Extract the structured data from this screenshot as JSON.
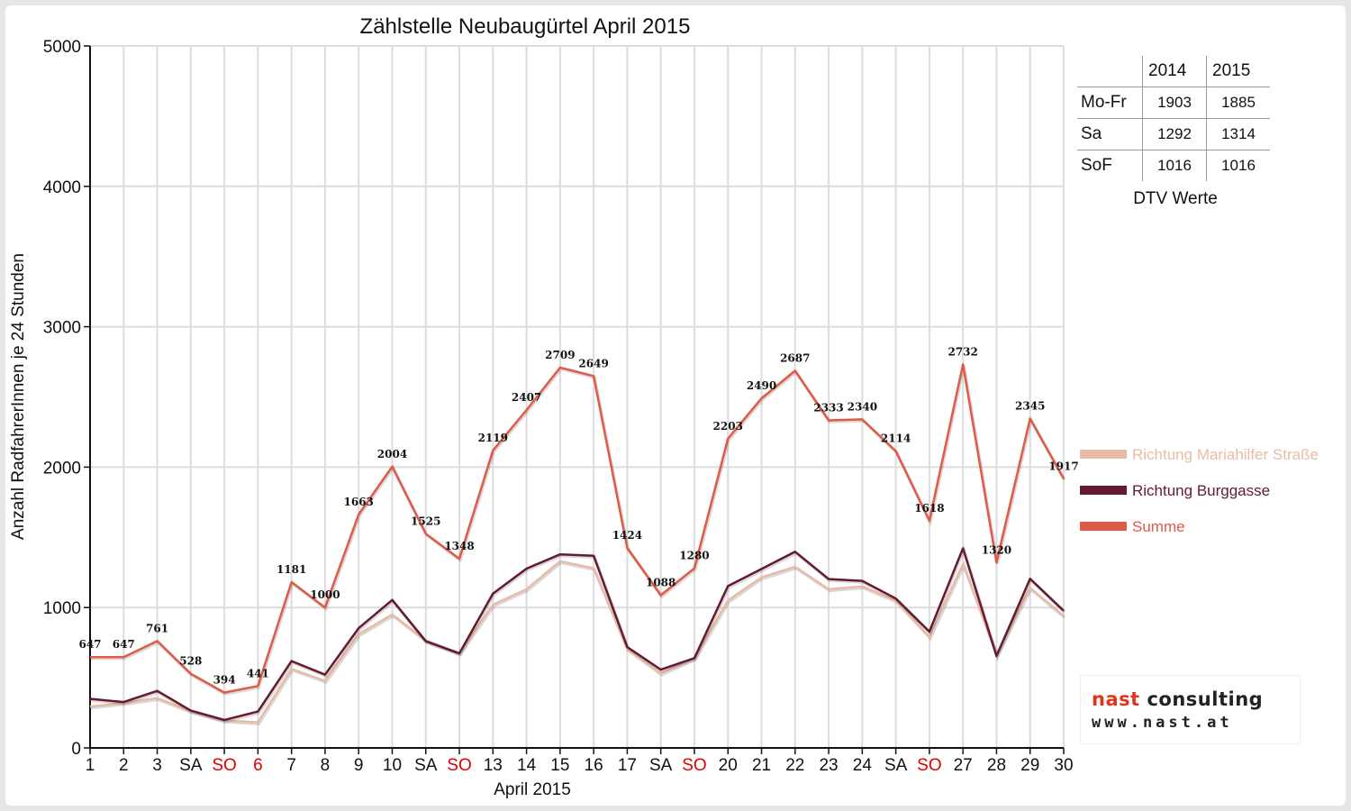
{
  "chart_data": {
    "type": "line",
    "title": "Zählstelle Neubaugürtel April 2015",
    "xlabel": "April 2015",
    "ylabel": "Anzahl RadfahrerInnen je 24 Stunden",
    "ylim": [
      0,
      5000
    ],
    "yticks": [
      0,
      1000,
      2000,
      3000,
      4000,
      5000
    ],
    "grid": true,
    "legend_position": "right",
    "categories": [
      "1",
      "2",
      "3",
      "SA",
      "SO",
      "6",
      "7",
      "8",
      "9",
      "10",
      "SA",
      "SO",
      "13",
      "14",
      "15",
      "16",
      "17",
      "SA",
      "SO",
      "20",
      "21",
      "22",
      "23",
      "24",
      "SA",
      "SO",
      "27",
      "28",
      "29",
      "30"
    ],
    "category_colors": [
      "#111",
      "#111",
      "#111",
      "#111",
      "#e00000",
      "#e00000",
      "#111",
      "#111",
      "#111",
      "#111",
      "#111",
      "#e00000",
      "#111",
      "#111",
      "#111",
      "#111",
      "#111",
      "#111",
      "#e00000",
      "#111",
      "#111",
      "#111",
      "#111",
      "#111",
      "#111",
      "#e00000",
      "#111",
      "#111",
      "#111",
      "#111"
    ],
    "series": [
      {
        "name": "Richtung Mariahilfer Straße",
        "color": "#e8bba6",
        "values": [
          295,
          320,
          355,
          262,
          195,
          182,
          562,
          478,
          810,
          950,
          765,
          675,
          1020,
          1130,
          1330,
          1280,
          705,
          530,
          640,
          1050,
          1215,
          1290,
          1130,
          1150,
          1050,
          790,
          1310,
          665,
          1140,
          940
        ]
      },
      {
        "name": "Richtung Burggasse",
        "color": "#651a2f",
        "values": [
          350,
          327,
          406,
          266,
          199,
          259,
          619,
          522,
          853,
          1054,
          760,
          673,
          1099,
          1277,
          1379,
          1369,
          719,
          558,
          640,
          1153,
          1275,
          1397,
          1203,
          1190,
          1064,
          828,
          1422,
          655,
          1205,
          977
        ]
      },
      {
        "name": "Summe",
        "color": "#e05a44",
        "values": [
          647,
          647,
          761,
          528,
          394,
          441,
          1181,
          1000,
          1663,
          2004,
          1525,
          1348,
          2119,
          2407,
          2709,
          2649,
          1424,
          1088,
          1280,
          2203,
          2490,
          2687,
          2333,
          2340,
          2114,
          1618,
          2732,
          1320,
          2345,
          1917
        ],
        "data_labels": [
          "647",
          "647",
          "761",
          "528",
          "394",
          "441",
          "1181",
          "1000",
          "1663",
          "2004",
          "1525",
          "1348",
          "2119",
          "2407",
          "2709",
          "2649",
          "1424",
          "1088",
          "1280",
          "2203",
          "2490",
          "2687",
          "2333",
          "2340",
          "2114",
          "1618",
          "2732",
          "1320",
          "2345",
          "1917"
        ]
      }
    ]
  },
  "dtv": {
    "col_2014": "2014",
    "col_2015": "2015",
    "rows": [
      {
        "label": "Mo-Fr",
        "v2014": "1903",
        "v2015": "1885"
      },
      {
        "label": "Sa",
        "v2014": "1292",
        "v2015": "1314"
      },
      {
        "label": "SoF",
        "v2014": "1016",
        "v2015": "1016"
      }
    ],
    "caption": "DTV Werte"
  },
  "logo": {
    "brand_a": "nast",
    "brand_b": " consulting",
    "url": "www.nast.at"
  }
}
